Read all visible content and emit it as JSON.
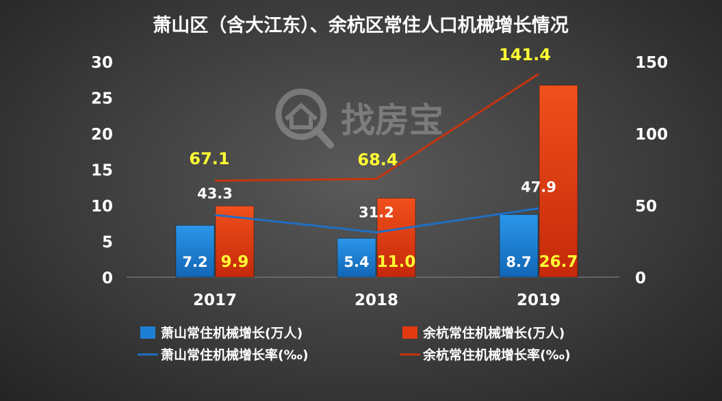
{
  "chart_data": {
    "type": "bar-line-combo",
    "title": "萧山区（含大江东）、余杭区常住人口机械增长情况",
    "categories": [
      "2017",
      "2018",
      "2019"
    ],
    "y_left": {
      "range": [
        0,
        30
      ],
      "ticks": [
        "0",
        "5",
        "10",
        "15",
        "20",
        "25",
        "30"
      ]
    },
    "y_right": {
      "range": [
        0,
        150
      ],
      "ticks": [
        "0",
        "50",
        "100",
        "150"
      ]
    },
    "grid": false,
    "legend_position": "bottom",
    "series": [
      {
        "name": "萧山常住机械增长(万人)",
        "kind": "bar",
        "axis": "left",
        "color": "#1f7fd4",
        "values": [
          7.2,
          5.4,
          8.7
        ],
        "labels": [
          "7.2",
          "5.4",
          "8.7"
        ]
      },
      {
        "name": "余杭常住机械增长(万人)",
        "kind": "bar",
        "axis": "left",
        "color": "#e23a10",
        "values": [
          9.9,
          11.0,
          26.7
        ],
        "labels": [
          "9.9",
          "11.0",
          "26.7"
        ]
      },
      {
        "name": "萧山常住机械增长率(‰)",
        "kind": "line",
        "axis": "right",
        "color": "#1f6fc4",
        "values": [
          43.3,
          31.2,
          47.9
        ],
        "labels": [
          "43.3",
          "31.2",
          "47.9"
        ]
      },
      {
        "name": "余杭常住机械增长率(‰)",
        "kind": "line",
        "axis": "right",
        "color": "#c8340e",
        "values": [
          67.1,
          68.4,
          141.4
        ],
        "labels": [
          "67.1",
          "68.4",
          "141.4"
        ]
      }
    ]
  },
  "watermark": {
    "text": "找房宝"
  },
  "colors": {
    "highlight_label": "#ffff33",
    "white_label": "#ffffff",
    "axis_text": "#ffffff"
  }
}
